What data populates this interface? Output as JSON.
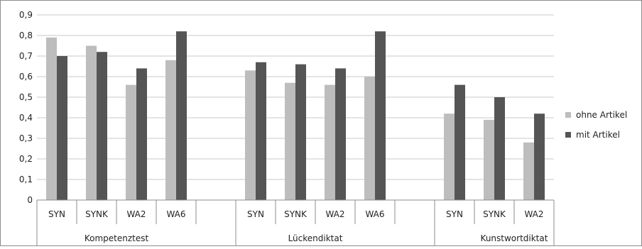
{
  "chart_data": {
    "type": "bar",
    "title": "",
    "xlabel": "",
    "ylabel": "",
    "ylim": [
      0,
      0.9
    ],
    "y_ticks": [
      "0",
      "0,1",
      "0,2",
      "0,3",
      "0,4",
      "0,5",
      "0,6",
      "0,7",
      "0,8",
      "0,9"
    ],
    "grid": "horizontal",
    "legend_position": "right",
    "groups": [
      {
        "label": "Kompetenztest",
        "categories": [
          "SYN",
          "SYNK",
          "WA2",
          "WA6"
        ]
      },
      {
        "label": "Lückendiktat",
        "categories": [
          "SYN",
          "SYNK",
          "WA2",
          "WA6"
        ]
      },
      {
        "label": "Kunstwortdiktat",
        "categories": [
          "SYN",
          "SYNK",
          "WA2"
        ]
      }
    ],
    "series": [
      {
        "name": "ohne Artikel",
        "color": "#bdbdbd",
        "values": [
          0.79,
          0.75,
          0.56,
          0.68,
          0.63,
          0.57,
          0.56,
          0.6,
          0.42,
          0.39,
          0.28
        ]
      },
      {
        "name": "mit Artikel",
        "color": "#555555",
        "values": [
          0.7,
          0.72,
          0.64,
          0.82,
          0.67,
          0.66,
          0.64,
          0.82,
          0.56,
          0.5,
          0.42
        ]
      }
    ]
  }
}
